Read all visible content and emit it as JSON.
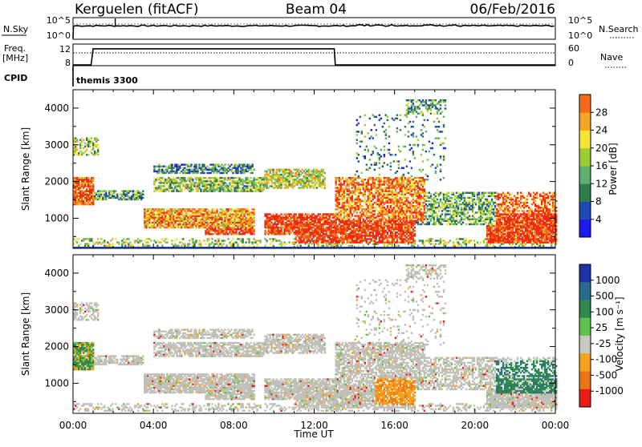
{
  "header": {
    "station": "Kerguelen (fitACF)",
    "beam": "Beam 04",
    "date": "06/Feb/2016"
  },
  "noise_panel": {
    "left_label": "N.Sky",
    "left_ticks": [
      "10^5",
      "10^0"
    ],
    "right_ticks": [
      "10^5",
      "10^0"
    ],
    "right_label": "N.Search"
  },
  "freq_panel": {
    "label_line1": "Freq.",
    "label_line2": "[MHz]",
    "left_ticks": [
      "12",
      "8"
    ],
    "right_ticks": [
      "60",
      "0"
    ],
    "right_label": "Nave",
    "cpid_label": "CPID",
    "cpid_value": "themis 3300"
  },
  "time_axis": {
    "ticks": [
      "00:00",
      "04:00",
      "08:00",
      "12:00",
      "16:00",
      "20:00",
      "00:00"
    ],
    "label": "Time UT"
  },
  "power_panel": {
    "ylabel": "Slant Range [km]",
    "yticks": [
      "4000",
      "3000",
      "2000",
      "1000"
    ],
    "colorbar_label": "Power [dB]",
    "colorbar_ticks": [
      "28",
      "24",
      "20",
      "16",
      "12",
      "8",
      "4"
    ]
  },
  "velocity_panel": {
    "ylabel": "Slant Range [km]",
    "yticks": [
      "4000",
      "3000",
      "2000",
      "1000"
    ],
    "colorbar_label": "Velocity [m s⁻¹]",
    "colorbar_ticks": [
      "1000",
      "500",
      "100",
      "25",
      "-25",
      "-100",
      "-500",
      "-1000"
    ]
  },
  "colors": {
    "power_scale": [
      "#1b1bf0",
      "#1f49b8",
      "#2f7b4b",
      "#5db06b",
      "#9acd33",
      "#f3e533",
      "#f5a623",
      "#f46a1a",
      "#ef2a14"
    ],
    "velocity_scale": [
      "#2030a8",
      "#2c6a8c",
      "#2f8a4c",
      "#5fc24a",
      "#c8c8c0",
      "#f6a21a",
      "#ee7414",
      "#ea1a14"
    ],
    "ground_scatter": "#c0c0b8"
  },
  "chart_data": [
    {
      "type": "heatmap",
      "title": "Kerguelen (fitACF) Beam 04",
      "xlabel": "Time UT",
      "ylabel": "Slant Range [km]",
      "x": [
        "00:00",
        "04:00",
        "08:00",
        "12:00",
        "16:00",
        "20:00",
        "00:00"
      ],
      "xlim_hours": [
        0,
        24
      ],
      "ylim": [
        180,
        4500
      ],
      "colorbar": "Power [dB]",
      "color_range": [
        0,
        30
      ],
      "grid": false
    },
    {
      "type": "heatmap",
      "xlabel": "Time UT",
      "ylabel": "Slant Range [km]",
      "x": [
        "00:00",
        "04:00",
        "08:00",
        "12:00",
        "16:00",
        "20:00",
        "00:00"
      ],
      "xlim_hours": [
        0,
        24
      ],
      "ylim": [
        180,
        4500
      ],
      "colorbar": "Velocity [m s⁻¹]",
      "color_range": [
        -1000,
        1000
      ],
      "grid": false
    },
    {
      "type": "line",
      "series": [
        {
          "name": "Freq.",
          "x": [
            0,
            0.9,
            1.0,
            13.0,
            13.05,
            24
          ],
          "values": [
            8,
            8,
            11.5,
            11.5,
            8,
            8
          ]
        }
      ],
      "ylim": [
        8,
        12
      ]
    }
  ]
}
